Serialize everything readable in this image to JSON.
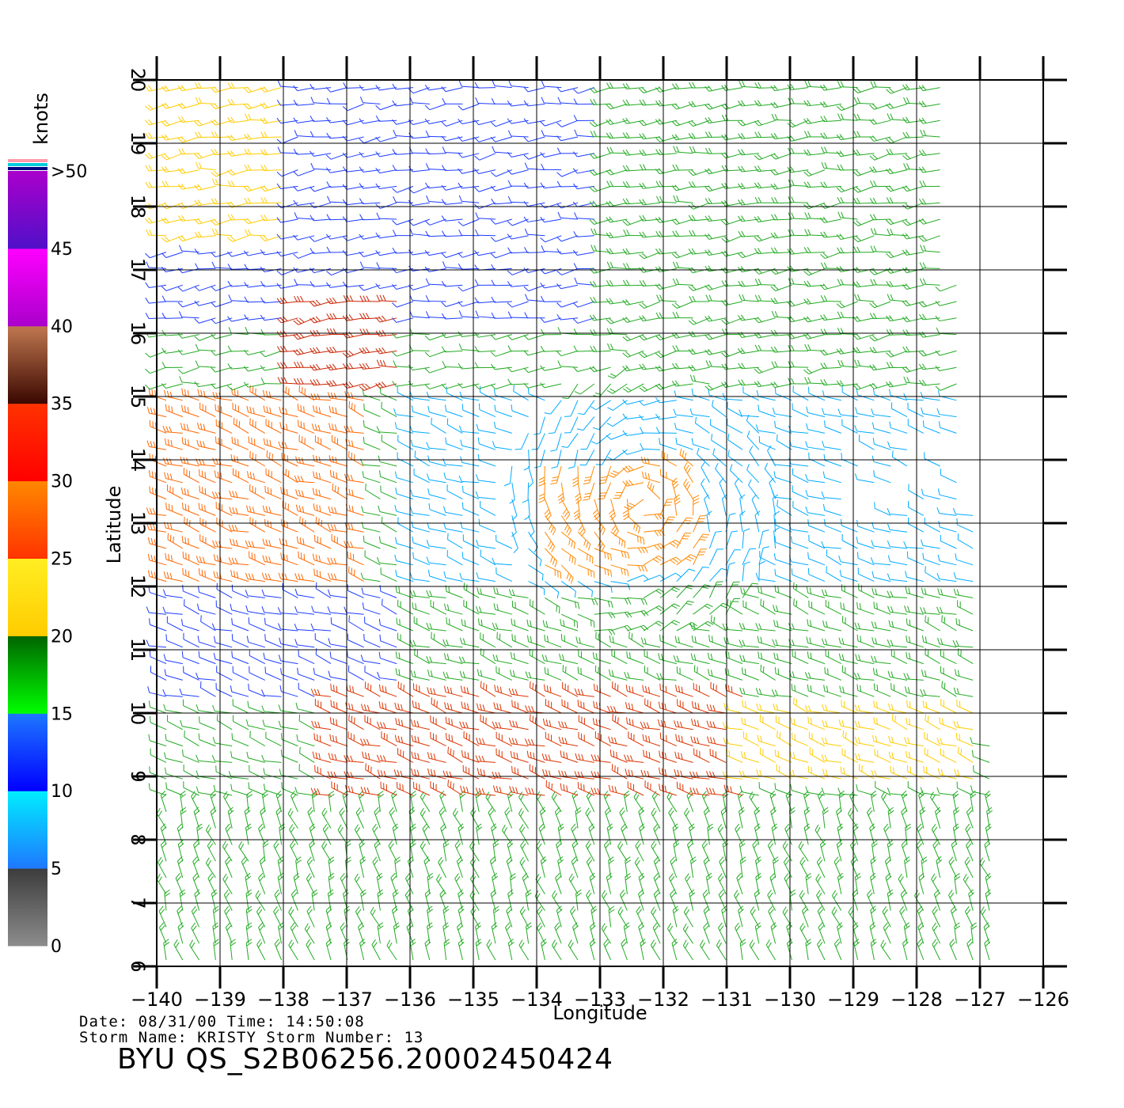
{
  "chart_data": {
    "type": "scatter",
    "subtype": "wind-barb map (scatterometer)",
    "xlabel": "Longitude",
    "ylabel": "Latitude",
    "xlim": [
      -140,
      -126
    ],
    "ylim": [
      6,
      20
    ],
    "x_ticks": [
      -140,
      -139,
      -138,
      -137,
      -136,
      -135,
      -134,
      -133,
      -132,
      -131,
      -130,
      -129,
      -128,
      -127,
      -126
    ],
    "x_tick_labels": [
      "−140",
      "−139",
      "−138",
      "−137",
      "−136",
      "−135",
      "−134",
      "−133",
      "−132",
      "−131",
      "−130",
      "−129",
      "−128",
      "−127",
      "−126"
    ],
    "y_ticks": [
      6,
      7,
      8,
      9,
      10,
      11,
      12,
      13,
      14,
      15,
      16,
      17,
      18,
      19,
      20
    ],
    "y_tick_labels": [
      "6",
      "7",
      "8",
      "9",
      "10",
      "11",
      "12",
      "13",
      "14",
      "15",
      "16",
      "17",
      "18",
      "19",
      "20"
    ],
    "grid": true,
    "colorbar": {
      "title": "knots",
      "placement": "left",
      "levels": [
        0,
        5,
        10,
        15,
        20,
        25,
        30,
        35,
        40,
        45,
        ">50"
      ],
      "bands": [
        {
          "from": 0,
          "to": 5,
          "top": "#3c3c3c",
          "bottom": "#8c8c8c"
        },
        {
          "from": 5,
          "to": 10,
          "top": "#00eeff",
          "bottom": "#1e78ff"
        },
        {
          "from": 10,
          "to": 15,
          "top": "#1e78ff",
          "bottom": "#0000ff"
        },
        {
          "from": 15,
          "to": 20,
          "top": "#006400",
          "bottom": "#00ff00"
        },
        {
          "from": 20,
          "to": 25,
          "top": "#ffee22",
          "bottom": "#ffcc00"
        },
        {
          "from": 25,
          "to": 30,
          "top": "#ff8800",
          "bottom": "#ff3300"
        },
        {
          "from": 30,
          "to": 35,
          "top": "#ff3300",
          "bottom": "#ff0000"
        },
        {
          "from": 35,
          "to": 40,
          "top": "#c07850",
          "bottom": "#3a0800"
        },
        {
          "from": 40,
          "to": 45,
          "top": "#ff00ff",
          "bottom": "#aa00cc"
        },
        {
          "from": 45,
          "to": 50,
          "top": "#aa00cc",
          "bottom": "#5010c8"
        }
      ],
      "over_colors": [
        "#ff99aa",
        "#00ccdd",
        "#000080"
      ]
    },
    "storm_center": {
      "lon": -132.3,
      "lat": 13.3
    },
    "wind_bands": [
      {
        "lon_min": -140,
        "lon_max": -133,
        "lat_min": 16,
        "lat_max": 20,
        "speed_knots": 12,
        "color": "#1e3cff"
      },
      {
        "lon_min": -140,
        "lon_max": -138,
        "lat_min": 17.5,
        "lat_max": 20,
        "speed_knots": 22,
        "color": "#ffcc00"
      },
      {
        "lon_min": -133,
        "lon_max": -127.5,
        "lat_min": 15,
        "lat_max": 20,
        "speed_knots": 17,
        "color": "#22aa22"
      },
      {
        "lon_min": -138,
        "lon_max": -136,
        "lat_min": 15,
        "lat_max": 16.5,
        "speed_knots": 32,
        "color": "#cc2200"
      },
      {
        "lon_min": -140,
        "lon_max": -136.5,
        "lat_min": 12,
        "lat_max": 15,
        "speed_knots": 28,
        "color": "#ff6600"
      },
      {
        "lon_min": -136,
        "lon_max": -127,
        "lat_min": 12,
        "lat_max": 15,
        "speed_knots": 9,
        "color": "#00aaff"
      },
      {
        "lon_min": -134,
        "lon_max": -131.5,
        "lat_min": 12.2,
        "lat_max": 14,
        "speed_knots": 26,
        "color": "#ff8800"
      },
      {
        "lon_min": -140,
        "lon_max": -136,
        "lat_min": 10,
        "lat_max": 12,
        "speed_knots": 12,
        "color": "#1e3cff"
      },
      {
        "lon_min": -136,
        "lon_max": -127,
        "lat_min": 10,
        "lat_max": 12,
        "speed_knots": 18,
        "color": "#22aa22"
      },
      {
        "lon_min": -137.5,
        "lon_max": -130.5,
        "lat_min": 8.5,
        "lat_max": 10.5,
        "speed_knots": 28,
        "color": "#dd3300"
      },
      {
        "lon_min": -131,
        "lon_max": -127,
        "lat_min": 8.8,
        "lat_max": 10.2,
        "speed_knots": 22,
        "color": "#ffcc00"
      },
      {
        "lon_min": -140,
        "lon_max": -126,
        "lat_min": 6,
        "lat_max": 8.5,
        "speed_knots": 17,
        "color": "#22aa22"
      }
    ]
  },
  "info": {
    "line1": "Date: 08/31/00   Time: 14:50:08",
    "line2": "Storm Name: KRISTY   Storm Number: 13",
    "product": "BYU QS_S2B06256.20002450424"
  }
}
